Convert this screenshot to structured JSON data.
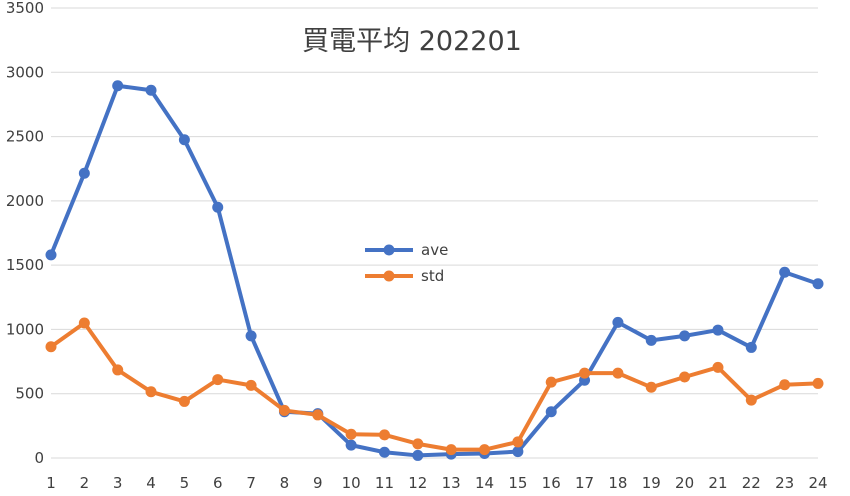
{
  "chart_data": {
    "type": "line",
    "title": "買電平均 202201",
    "xlabel": "",
    "ylabel": "",
    "categories": [
      "1",
      "2",
      "3",
      "4",
      "5",
      "6",
      "7",
      "8",
      "9",
      "10",
      "11",
      "12",
      "13",
      "14",
      "15",
      "16",
      "17",
      "18",
      "19",
      "20",
      "21",
      "22",
      "23",
      "24"
    ],
    "ylim": [
      0,
      3500
    ],
    "yticks": [
      0,
      500,
      1000,
      1500,
      2000,
      2500,
      3000,
      3500
    ],
    "grid": true,
    "legend_position": "center-left",
    "series": [
      {
        "name": "ave",
        "color": "#4472C4",
        "values": [
          1580,
          2215,
          2895,
          2860,
          2475,
          1950,
          950,
          360,
          345,
          100,
          45,
          20,
          30,
          35,
          50,
          360,
          605,
          1055,
          915,
          950,
          995,
          860,
          1445,
          1355
        ]
      },
      {
        "name": "std",
        "color": "#ED7D31",
        "values": [
          865,
          1050,
          685,
          515,
          440,
          610,
          565,
          370,
          335,
          185,
          180,
          110,
          65,
          65,
          125,
          590,
          660,
          660,
          550,
          630,
          705,
          450,
          570,
          580
        ]
      }
    ]
  }
}
